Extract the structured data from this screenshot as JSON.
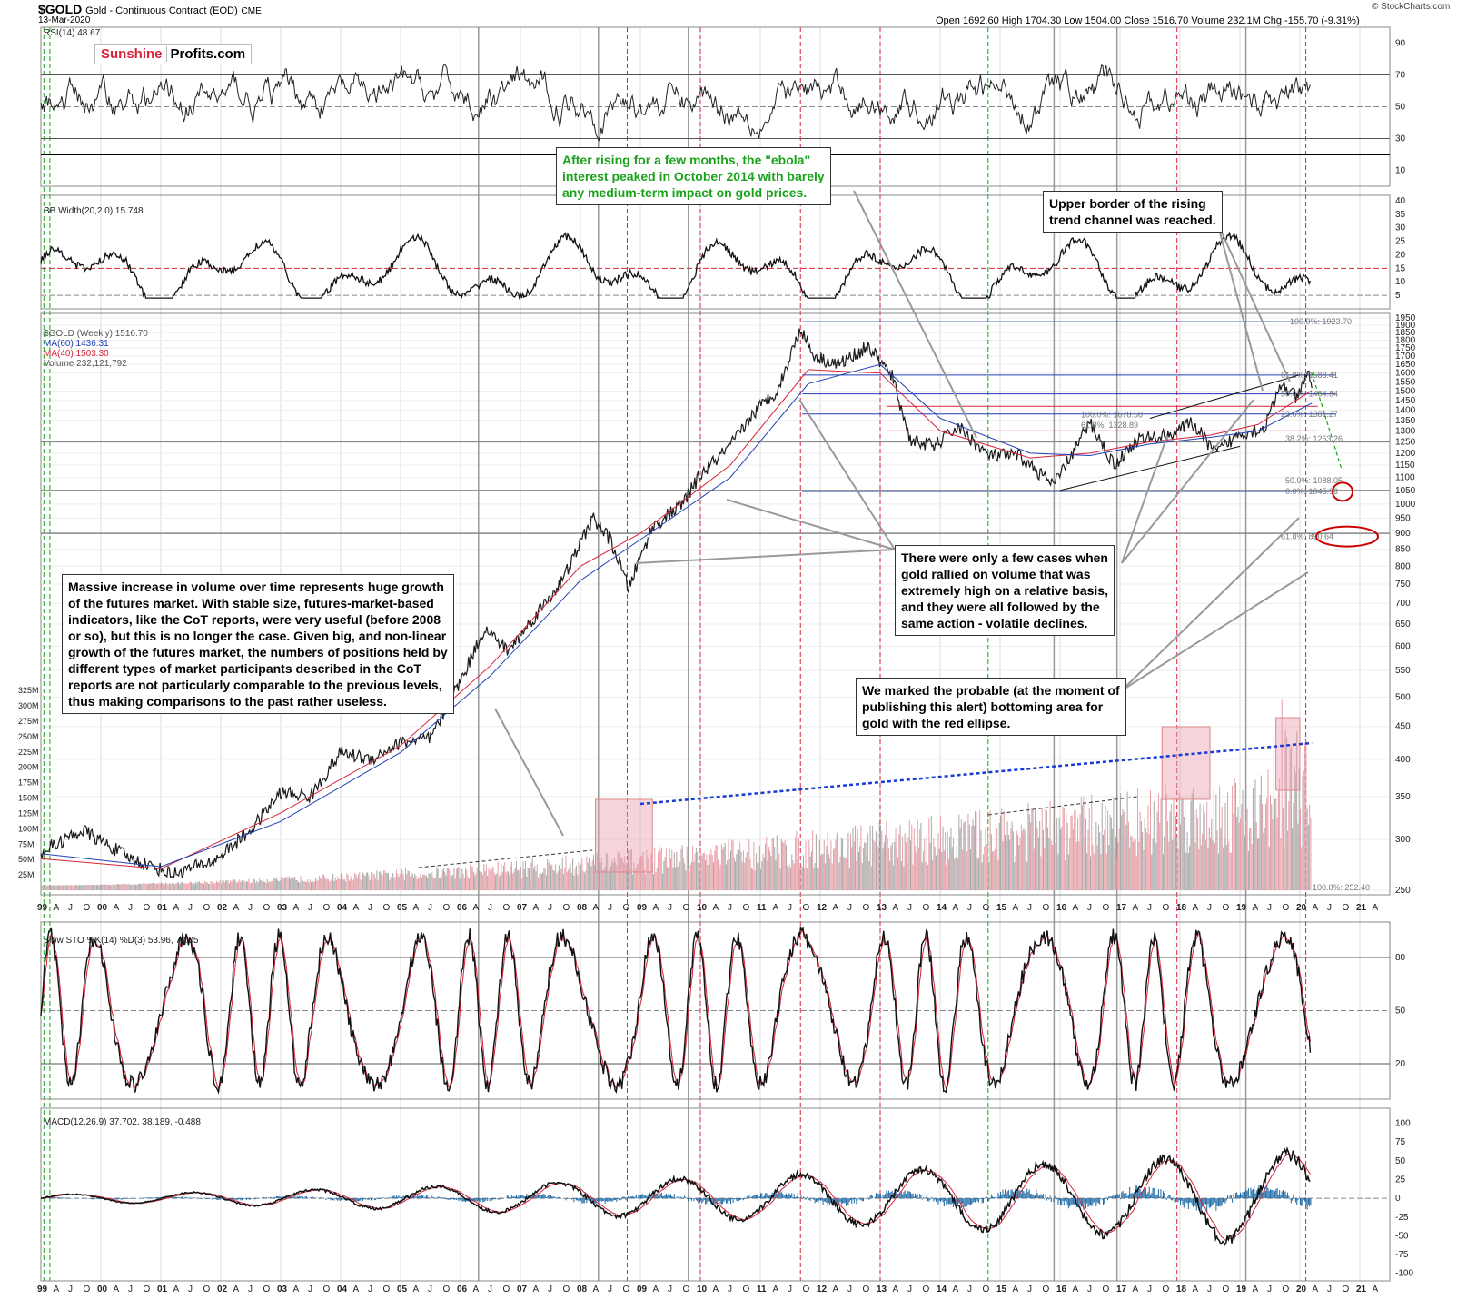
{
  "header": {
    "symbol": "$GOLD",
    "name": "Gold - Continuous Contract (EOD)",
    "exchange": "CME",
    "date": "13-Mar-2020",
    "brand": "© StockCharts.com",
    "ohlc": "Open 1692.60  High 1704.30  Low 1504.00  Close 1516.70  Volume 232.1M  Chg -155.70 (-9.31%)"
  },
  "logo": {
    "part1": "Sunshine",
    "part2": "Profits.com"
  },
  "panels": {
    "rsi": "RSI(14) 48.67",
    "bb": "BB Width(20,2.0) 15.748",
    "price": "$GOLD (Weekly) 1516.70",
    "ma60": "MA(60) 1436.31",
    "ma40": "MA(40) 1503.30",
    "volume": "Volume 232,121,792",
    "sto": "Slow STO %K(14) %D(3) 53.96, 70.05",
    "macd": "MACD(12,26,9) 37.702, 38.189, -0.488"
  },
  "annotations": {
    "ebola": "After rising for a few months, the \"ebola\"\ninterest peaked in October 2014 with barely\nany medium-term impact on gold prices.",
    "upper": "Upper border of the rising\ntrend channel was reached.",
    "volume_cases": "There were only a few cases when\ngold rallied on volume that was\nextremely high on a relative basis,\nand they were all followed by the\nsame action - volatile declines.",
    "massive": "Massive increase in volume over time represents huge growth\nof the futures market. With stable size, futures-market-based\nindicators, like the CoT reports, were very useful (before 2008\nor so), but this is no longer the case. Given big, and non-linear\ngrowth of the futures market, the numbers of positions held by\ndifferent types of market participants described in the CoT\nreports are not particularly comparable to the previous levels,\nthus making comparisons to the past rather useless.",
    "ellipse": "We marked the probable (at the moment of\npublishing this alert) bottoming area for\ngold with the red ellipse."
  },
  "fib_labels": [
    "100.0%: 1923.70",
    "61.8%: 1588.41",
    "50.0%: 1484.84",
    "23.6%: 1381.27",
    "38.2%: 1263.26",
    "50.0%: 1088.05",
    "0.0%: 1045.93",
    "61.8%: 890.64",
    "100.0%: 1678.58",
    "61.8%: 1328.89",
    "100.0%: 252.40"
  ],
  "colors": {
    "price": "#1a1a1a",
    "ma40": "#d6243a",
    "ma60": "#1f3fb5",
    "volume_up": "#e8a0a8",
    "volume_down": "#a9a9a9",
    "macd_hist": "#1f6aa5",
    "green": "#1aa31a",
    "red_line": "#d6243a",
    "fib_line": "#1f3fb5",
    "dash_blue": "#1a3bd6"
  },
  "chart_data": {
    "type": "line",
    "title": "Gold - Continuous Contract (EOD)",
    "x_tick_years": [
      "99",
      "00",
      "01",
      "02",
      "03",
      "04",
      "05",
      "06",
      "07",
      "08",
      "09",
      "10",
      "11",
      "12",
      "13",
      "14",
      "15",
      "16",
      "17",
      "18",
      "19",
      "20",
      "21"
    ],
    "x_month_labels": [
      "A",
      "J",
      "O"
    ],
    "price_axis": [
      250,
      300,
      350,
      400,
      450,
      500,
      550,
      600,
      650,
      700,
      750,
      800,
      850,
      900,
      950,
      1000,
      1050,
      1100,
      1150,
      1200,
      1250,
      1300,
      1350,
      1400,
      1450,
      1500,
      1550,
      1600,
      1650,
      1700,
      1750,
      1800,
      1850,
      1900,
      1950
    ],
    "price_log_scale": true,
    "price_series": {
      "name": "$GOLD (Weekly)",
      "x": [
        1999.0,
        1999.7,
        2000.5,
        2001.2,
        2001.9,
        2002.5,
        2003.0,
        2003.5,
        2004.0,
        2004.5,
        2005.0,
        2005.5,
        2006.0,
        2006.4,
        2006.8,
        2007.3,
        2007.7,
        2008.2,
        2008.5,
        2008.8,
        2009.2,
        2009.7,
        2010.0,
        2010.5,
        2010.9,
        2011.3,
        2011.67,
        2011.9,
        2012.3,
        2012.8,
        2013.2,
        2013.5,
        2013.9,
        2014.3,
        2014.8,
        2015.3,
        2015.9,
        2016.5,
        2016.9,
        2017.3,
        2017.8,
        2018.2,
        2018.6,
        2019.0,
        2019.4,
        2019.7,
        2019.95,
        2020.15,
        2020.2
      ],
      "y": [
        287,
        310,
        280,
        265,
        278,
        310,
        355,
        350,
        410,
        400,
        425,
        430,
        530,
        640,
        590,
        680,
        760,
        950,
        880,
        740,
        920,
        1000,
        1110,
        1230,
        1390,
        1510,
        1880,
        1700,
        1650,
        1760,
        1580,
        1260,
        1230,
        1320,
        1190,
        1190,
        1070,
        1340,
        1150,
        1260,
        1280,
        1340,
        1200,
        1290,
        1310,
        1540,
        1460,
        1600,
        1516.7
      ]
    },
    "ma40": {
      "name": "MA(40)",
      "x": [
        1999.0,
        2001.0,
        2003.0,
        2005.0,
        2006.5,
        2008.0,
        2009.0,
        2010.5,
        2011.8,
        2013.0,
        2014.0,
        2015.5,
        2016.5,
        2017.5,
        2018.5,
        2019.3,
        2020.2
      ],
      "y": [
        280,
        270,
        330,
        420,
        560,
        800,
        900,
        1150,
        1620,
        1600,
        1300,
        1180,
        1200,
        1250,
        1280,
        1330,
        1503.3
      ]
    },
    "ma60": {
      "name": "MA(60)",
      "x": [
        1999.0,
        2001.0,
        2003.0,
        2005.0,
        2006.5,
        2008.0,
        2009.0,
        2010.5,
        2011.8,
        2013.0,
        2014.0,
        2015.5,
        2016.5,
        2017.5,
        2018.5,
        2019.3,
        2020.2
      ],
      "y": [
        285,
        272,
        320,
        410,
        540,
        760,
        880,
        1100,
        1540,
        1650,
        1360,
        1200,
        1190,
        1240,
        1270,
        1300,
        1436.31
      ]
    },
    "rsi_last": 48.67,
    "bb_width_last": 15.748,
    "sto_k_last": 53.96,
    "sto_d_last": 70.05,
    "macd_last": [
      37.702,
      38.189,
      -0.488
    ],
    "rsi_axis": [
      10,
      30,
      50,
      70,
      90
    ],
    "bb_axis": [
      5,
      10,
      15,
      20,
      25,
      30,
      35,
      40
    ],
    "sto_axis": [
      20,
      50,
      80
    ],
    "macd_axis": [
      -100,
      -75,
      -50,
      -25,
      0,
      25,
      50,
      75,
      100
    ],
    "volume_axis": [
      "25M",
      "50M",
      "75M",
      "100M",
      "125M",
      "150M",
      "175M",
      "200M",
      "225M",
      "250M",
      "275M",
      "300M",
      "325M"
    ],
    "vertical_red_years": [
      2008.78,
      2010.0,
      2011.67,
      2013.0,
      2017.95,
      2020.1,
      2020.22
    ],
    "vertical_green_years": [
      1999.05,
      1999.15,
      2014.8
    ],
    "vertical_gray_years": [
      2006.3,
      2008.3,
      2009.8,
      2015.9,
      2016.95,
      2019.1
    ]
  }
}
